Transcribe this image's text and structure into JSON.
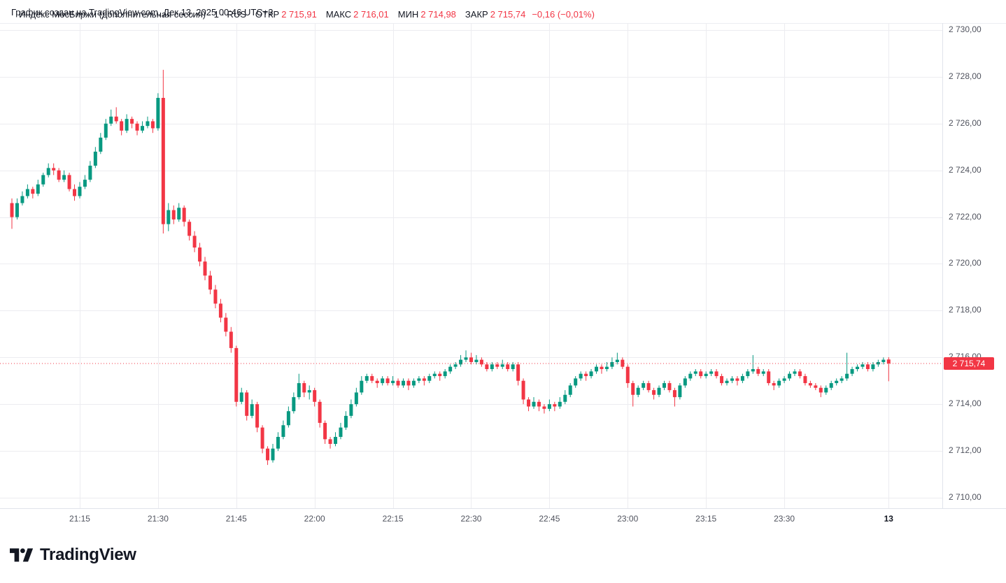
{
  "attribution": "График создан на TradingView.com, Дек 13, 2025 00:46 UTC+3",
  "legend": {
    "title": "Индекс МосБиржи (дополнительная сессия) · 1 · RUS",
    "open_label": "ОТКР",
    "open": "2 715,91",
    "high_label": "МАКС",
    "high": "2 716,01",
    "low_label": "МИН",
    "low": "2 714,98",
    "close_label": "ЗАКР",
    "close": "2 715,74",
    "change": "−0,16 (−0,01%)"
  },
  "price_axis": {
    "labels": [
      "2 730,00",
      "2 728,00",
      "2 726,00",
      "2 724,00",
      "2 722,00",
      "2 720,00",
      "2 718,00",
      "2 716,00",
      "2 714,00",
      "2 712,00",
      "2 710,00"
    ],
    "last_price_label": "2 715,74"
  },
  "time_axis": {
    "ticks": [
      {
        "label": "21:15",
        "time": "21:15"
      },
      {
        "label": "21:30",
        "time": "21:30"
      },
      {
        "label": "21:45",
        "time": "21:45"
      },
      {
        "label": "22:00",
        "time": "22:00"
      },
      {
        "label": "22:15",
        "time": "22:15"
      },
      {
        "label": "22:30",
        "time": "22:30"
      },
      {
        "label": "22:45",
        "time": "22:45"
      },
      {
        "label": "23:00",
        "time": "23:00"
      },
      {
        "label": "23:15",
        "time": "23:15"
      },
      {
        "label": "23:30",
        "time": "23:30"
      },
      {
        "label": "13",
        "time": "23:50",
        "emphasis": true
      }
    ]
  },
  "logo": {
    "text": "TradingView"
  },
  "colors": {
    "up": "#089981",
    "down": "#f23645",
    "grid": "#ececf0",
    "axis_line": "#e0e3eb",
    "text": "#131722",
    "axis_text": "#50535e",
    "badge_bg": "#f23645",
    "badge_text": "#ffffff",
    "background": "#ffffff"
  },
  "chart_data": {
    "type": "candlestick",
    "symbol": "Индекс МосБиржи (дополнительная сессия)",
    "interval_minutes": 1,
    "exchange": "RUS",
    "start_time": "21:02",
    "ylim": [
      2709.55,
      2730.3
    ],
    "y_ticks": [
      2730,
      2728,
      2726,
      2724,
      2722,
      2720,
      2718,
      2716,
      2714,
      2712,
      2710
    ],
    "last_close": 2715.74,
    "last_candle": {
      "open": 2715.91,
      "high": 2716.01,
      "low": 2714.98,
      "close": 2715.74,
      "change": -0.16,
      "change_pct": -0.01
    },
    "candle_format": [
      "time",
      "open",
      "high",
      "low",
      "close"
    ],
    "candles": [
      [
        "21:02",
        2722.6,
        2722.8,
        2721.5,
        2722.0
      ],
      [
        "21:03",
        2722.0,
        2722.8,
        2721.9,
        2722.6
      ],
      [
        "21:04",
        2722.6,
        2723.1,
        2722.5,
        2722.9
      ],
      [
        "21:05",
        2722.9,
        2723.4,
        2722.8,
        2723.2
      ],
      [
        "21:06",
        2723.2,
        2723.3,
        2722.8,
        2723.0
      ],
      [
        "21:07",
        2723.0,
        2723.6,
        2722.9,
        2723.4
      ],
      [
        "21:08",
        2723.4,
        2723.9,
        2723.3,
        2723.8
      ],
      [
        "21:09",
        2723.8,
        2724.3,
        2723.7,
        2724.1
      ],
      [
        "21:10",
        2724.1,
        2724.3,
        2723.8,
        2724.0
      ],
      [
        "21:11",
        2724.0,
        2724.1,
        2723.5,
        2723.6
      ],
      [
        "21:12",
        2723.6,
        2724.0,
        2723.5,
        2723.8
      ],
      [
        "21:13",
        2723.8,
        2723.9,
        2723.1,
        2723.2
      ],
      [
        "21:14",
        2723.2,
        2723.4,
        2722.7,
        2722.9
      ],
      [
        "21:15",
        2722.9,
        2723.5,
        2722.8,
        2723.3
      ],
      [
        "21:16",
        2723.3,
        2723.8,
        2723.2,
        2723.6
      ],
      [
        "21:17",
        2723.6,
        2724.4,
        2723.5,
        2724.2
      ],
      [
        "21:18",
        2724.2,
        2725.0,
        2724.1,
        2724.8
      ],
      [
        "21:19",
        2724.8,
        2725.6,
        2724.7,
        2725.4
      ],
      [
        "21:20",
        2725.4,
        2726.2,
        2725.3,
        2726.0
      ],
      [
        "21:21",
        2726.0,
        2726.6,
        2725.9,
        2726.3
      ],
      [
        "21:22",
        2726.3,
        2726.7,
        2726.0,
        2726.1
      ],
      [
        "21:23",
        2726.1,
        2726.2,
        2725.5,
        2725.7
      ],
      [
        "21:24",
        2725.7,
        2726.4,
        2725.6,
        2726.2
      ],
      [
        "21:25",
        2726.2,
        2726.3,
        2725.8,
        2726.0
      ],
      [
        "21:26",
        2726.0,
        2726.1,
        2725.5,
        2725.7
      ],
      [
        "21:27",
        2725.7,
        2726.1,
        2725.6,
        2725.9
      ],
      [
        "21:28",
        2725.9,
        2726.3,
        2725.8,
        2726.1
      ],
      [
        "21:29",
        2726.1,
        2726.2,
        2725.6,
        2725.8
      ],
      [
        "21:30",
        2725.8,
        2727.3,
        2725.7,
        2727.1
      ],
      [
        "21:31",
        2727.1,
        2728.3,
        2721.3,
        2721.7
      ],
      [
        "21:32",
        2721.7,
        2722.6,
        2721.4,
        2722.3
      ],
      [
        "21:33",
        2722.3,
        2722.5,
        2721.7,
        2721.9
      ],
      [
        "21:34",
        2721.9,
        2722.6,
        2721.8,
        2722.4
      ],
      [
        "21:35",
        2722.4,
        2722.5,
        2721.6,
        2721.8
      ],
      [
        "21:36",
        2721.8,
        2721.9,
        2721.0,
        2721.2
      ],
      [
        "21:37",
        2721.2,
        2721.4,
        2720.5,
        2720.7
      ],
      [
        "21:38",
        2720.7,
        2720.9,
        2719.9,
        2720.1
      ],
      [
        "21:39",
        2720.1,
        2720.3,
        2719.3,
        2719.5
      ],
      [
        "21:40",
        2719.5,
        2719.7,
        2718.7,
        2718.9
      ],
      [
        "21:41",
        2718.9,
        2719.1,
        2718.1,
        2718.3
      ],
      [
        "21:42",
        2718.3,
        2718.5,
        2717.5,
        2717.7
      ],
      [
        "21:43",
        2717.7,
        2717.9,
        2716.9,
        2717.1
      ],
      [
        "21:44",
        2717.1,
        2717.3,
        2716.2,
        2716.4
      ],
      [
        "21:45",
        2716.4,
        2716.5,
        2713.9,
        2714.1
      ],
      [
        "21:46",
        2714.1,
        2714.7,
        2714.0,
        2714.5
      ],
      [
        "21:47",
        2714.5,
        2714.6,
        2713.3,
        2713.5
      ],
      [
        "21:48",
        2713.5,
        2714.2,
        2713.4,
        2714.0
      ],
      [
        "21:49",
        2714.0,
        2714.1,
        2712.8,
        2713.0
      ],
      [
        "21:50",
        2713.0,
        2713.1,
        2711.9,
        2712.1
      ],
      [
        "21:51",
        2712.1,
        2712.2,
        2711.4,
        2711.6
      ],
      [
        "21:52",
        2711.6,
        2712.3,
        2711.5,
        2712.1
      ],
      [
        "21:53",
        2712.1,
        2712.8,
        2712.0,
        2712.6
      ],
      [
        "21:54",
        2712.6,
        2713.3,
        2712.5,
        2713.1
      ],
      [
        "21:55",
        2713.1,
        2713.9,
        2713.0,
        2713.7
      ],
      [
        "21:56",
        2713.7,
        2714.5,
        2713.6,
        2714.3
      ],
      [
        "21:57",
        2714.3,
        2715.3,
        2714.2,
        2714.9
      ],
      [
        "21:58",
        2714.9,
        2715.0,
        2714.3,
        2714.5
      ],
      [
        "21:59",
        2714.5,
        2714.8,
        2714.2,
        2714.6
      ],
      [
        "22:00",
        2714.6,
        2714.7,
        2713.9,
        2714.1
      ],
      [
        "22:01",
        2714.1,
        2714.2,
        2713.0,
        2713.2
      ],
      [
        "22:02",
        2713.2,
        2713.3,
        2712.3,
        2712.5
      ],
      [
        "22:03",
        2712.5,
        2712.6,
        2712.1,
        2712.3
      ],
      [
        "22:04",
        2712.3,
        2712.8,
        2712.2,
        2712.6
      ],
      [
        "22:05",
        2712.6,
        2713.2,
        2712.5,
        2713.0
      ],
      [
        "22:06",
        2713.0,
        2713.7,
        2712.9,
        2713.5
      ],
      [
        "22:07",
        2713.5,
        2714.2,
        2713.4,
        2714.0
      ],
      [
        "22:08",
        2714.0,
        2714.7,
        2713.9,
        2714.5
      ],
      [
        "22:09",
        2714.5,
        2715.2,
        2714.4,
        2715.0
      ],
      [
        "22:10",
        2715.0,
        2715.3,
        2714.9,
        2715.2
      ],
      [
        "22:11",
        2715.2,
        2715.3,
        2714.9,
        2715.0
      ],
      [
        "22:12",
        2715.0,
        2715.1,
        2714.7,
        2714.9
      ],
      [
        "22:13",
        2714.9,
        2715.2,
        2714.8,
        2715.1
      ],
      [
        "22:14",
        2715.1,
        2715.2,
        2714.8,
        2714.9
      ],
      [
        "22:15",
        2714.9,
        2715.2,
        2714.8,
        2715.0
      ],
      [
        "22:16",
        2715.0,
        2715.1,
        2714.7,
        2714.8
      ],
      [
        "22:17",
        2714.8,
        2715.1,
        2714.7,
        2715.0
      ],
      [
        "22:18",
        2715.0,
        2715.1,
        2714.6,
        2714.8
      ],
      [
        "22:19",
        2714.8,
        2715.1,
        2714.7,
        2715.0
      ],
      [
        "22:20",
        2715.0,
        2715.2,
        2714.9,
        2715.1
      ],
      [
        "22:21",
        2715.1,
        2715.2,
        2714.8,
        2715.0
      ],
      [
        "22:22",
        2715.0,
        2715.3,
        2714.9,
        2715.2
      ],
      [
        "22:23",
        2715.2,
        2715.4,
        2715.1,
        2715.3
      ],
      [
        "22:24",
        2715.3,
        2715.4,
        2715.0,
        2715.2
      ],
      [
        "22:25",
        2715.2,
        2715.5,
        2715.1,
        2715.4
      ],
      [
        "22:26",
        2715.4,
        2715.7,
        2715.3,
        2715.6
      ],
      [
        "22:27",
        2715.6,
        2715.8,
        2715.5,
        2715.7
      ],
      [
        "22:28",
        2715.7,
        2716.1,
        2715.6,
        2715.9
      ],
      [
        "22:29",
        2715.9,
        2716.3,
        2715.8,
        2716.0
      ],
      [
        "22:30",
        2716.0,
        2716.2,
        2715.7,
        2715.8
      ],
      [
        "22:31",
        2715.8,
        2716.1,
        2715.7,
        2715.9
      ],
      [
        "22:32",
        2715.9,
        2716.0,
        2715.6,
        2715.7
      ],
      [
        "22:33",
        2715.7,
        2715.8,
        2715.4,
        2715.5
      ],
      [
        "22:34",
        2715.5,
        2715.8,
        2715.4,
        2715.7
      ],
      [
        "22:35",
        2715.7,
        2715.8,
        2715.5,
        2715.6
      ],
      [
        "22:36",
        2715.6,
        2715.9,
        2715.5,
        2715.7
      ],
      [
        "22:37",
        2715.7,
        2715.8,
        2715.4,
        2715.5
      ],
      [
        "22:38",
        2715.5,
        2715.8,
        2715.4,
        2715.7
      ],
      [
        "22:39",
        2715.7,
        2715.8,
        2714.8,
        2715.0
      ],
      [
        "22:40",
        2715.0,
        2715.1,
        2714.0,
        2714.2
      ],
      [
        "22:41",
        2714.2,
        2714.3,
        2713.7,
        2713.9
      ],
      [
        "22:42",
        2713.9,
        2714.3,
        2713.8,
        2714.1
      ],
      [
        "22:43",
        2714.1,
        2714.2,
        2713.7,
        2713.9
      ],
      [
        "22:44",
        2713.9,
        2714.0,
        2713.6,
        2713.8
      ],
      [
        "22:45",
        2713.8,
        2714.2,
        2713.7,
        2714.0
      ],
      [
        "22:46",
        2714.0,
        2714.1,
        2713.7,
        2713.9
      ],
      [
        "22:47",
        2713.9,
        2714.3,
        2713.8,
        2714.1
      ],
      [
        "22:48",
        2714.1,
        2714.6,
        2714.0,
        2714.4
      ],
      [
        "22:49",
        2714.4,
        2714.9,
        2714.3,
        2714.8
      ],
      [
        "22:50",
        2714.8,
        2715.2,
        2714.7,
        2715.1
      ],
      [
        "22:51",
        2715.1,
        2715.4,
        2715.0,
        2715.3
      ],
      [
        "22:52",
        2715.3,
        2715.4,
        2715.0,
        2715.2
      ],
      [
        "22:53",
        2715.2,
        2715.5,
        2715.1,
        2715.4
      ],
      [
        "22:54",
        2715.4,
        2715.7,
        2715.3,
        2715.6
      ],
      [
        "22:55",
        2715.6,
        2715.7,
        2715.3,
        2715.5
      ],
      [
        "22:56",
        2715.5,
        2715.8,
        2715.4,
        2715.6
      ],
      [
        "22:57",
        2715.6,
        2716.0,
        2715.5,
        2715.8
      ],
      [
        "22:58",
        2715.8,
        2716.2,
        2715.7,
        2715.9
      ],
      [
        "22:59",
        2715.9,
        2716.0,
        2715.5,
        2715.6
      ],
      [
        "23:00",
        2715.6,
        2715.7,
        2714.7,
        2714.9
      ],
      [
        "23:01",
        2714.9,
        2715.0,
        2713.9,
        2714.4
      ],
      [
        "23:02",
        2714.4,
        2714.8,
        2714.3,
        2714.7
      ],
      [
        "23:03",
        2714.7,
        2715.0,
        2714.6,
        2714.9
      ],
      [
        "23:04",
        2714.9,
        2715.0,
        2714.5,
        2714.6
      ],
      [
        "23:05",
        2714.6,
        2714.7,
        2714.2,
        2714.4
      ],
      [
        "23:06",
        2714.4,
        2714.8,
        2714.3,
        2714.7
      ],
      [
        "23:07",
        2714.7,
        2715.0,
        2714.6,
        2714.9
      ],
      [
        "23:08",
        2714.9,
        2715.0,
        2714.5,
        2714.6
      ],
      [
        "23:09",
        2714.6,
        2714.7,
        2713.9,
        2714.3
      ],
      [
        "23:10",
        2714.3,
        2714.9,
        2714.2,
        2714.8
      ],
      [
        "23:11",
        2714.8,
        2715.2,
        2714.7,
        2715.1
      ],
      [
        "23:12",
        2715.1,
        2715.4,
        2715.0,
        2715.3
      ],
      [
        "23:13",
        2715.3,
        2715.5,
        2715.2,
        2715.4
      ],
      [
        "23:14",
        2715.4,
        2715.5,
        2715.1,
        2715.2
      ],
      [
        "23:15",
        2715.2,
        2715.4,
        2715.1,
        2715.3
      ],
      [
        "23:16",
        2715.3,
        2715.5,
        2715.2,
        2715.4
      ],
      [
        "23:17",
        2715.4,
        2715.5,
        2715.1,
        2715.2
      ],
      [
        "23:18",
        2715.2,
        2715.3,
        2714.8,
        2714.9
      ],
      [
        "23:19",
        2714.9,
        2715.1,
        2714.8,
        2715.0
      ],
      [
        "23:20",
        2715.0,
        2715.2,
        2714.9,
        2715.1
      ],
      [
        "23:21",
        2715.1,
        2715.2,
        2714.8,
        2715.0
      ],
      [
        "23:22",
        2715.0,
        2715.3,
        2714.9,
        2715.2
      ],
      [
        "23:23",
        2715.2,
        2715.5,
        2715.1,
        2715.4
      ],
      [
        "23:24",
        2715.4,
        2716.1,
        2715.3,
        2715.5
      ],
      [
        "23:25",
        2715.5,
        2715.6,
        2715.2,
        2715.3
      ],
      [
        "23:26",
        2715.3,
        2715.5,
        2715.2,
        2715.4
      ],
      [
        "23:27",
        2715.4,
        2715.5,
        2714.8,
        2714.9
      ],
      [
        "23:28",
        2714.9,
        2715.0,
        2714.6,
        2714.8
      ],
      [
        "23:29",
        2714.8,
        2715.1,
        2714.7,
        2715.0
      ],
      [
        "23:30",
        2715.0,
        2715.2,
        2714.9,
        2715.1
      ],
      [
        "23:31",
        2715.1,
        2715.4,
        2715.0,
        2715.3
      ],
      [
        "23:32",
        2715.3,
        2715.5,
        2715.2,
        2715.4
      ],
      [
        "23:33",
        2715.4,
        2715.5,
        2715.1,
        2715.2
      ],
      [
        "23:34",
        2715.2,
        2715.3,
        2714.8,
        2714.9
      ],
      [
        "23:35",
        2714.9,
        2715.0,
        2714.7,
        2714.8
      ],
      [
        "23:36",
        2714.8,
        2714.9,
        2714.6,
        2714.7
      ],
      [
        "23:37",
        2714.7,
        2714.8,
        2714.3,
        2714.5
      ],
      [
        "23:38",
        2714.5,
        2714.8,
        2714.4,
        2714.7
      ],
      [
        "23:39",
        2714.7,
        2715.0,
        2714.6,
        2714.9
      ],
      [
        "23:40",
        2714.9,
        2715.1,
        2714.8,
        2715.0
      ],
      [
        "23:41",
        2715.0,
        2715.2,
        2714.9,
        2715.1
      ],
      [
        "23:42",
        2715.1,
        2716.2,
        2715.0,
        2715.3
      ],
      [
        "23:43",
        2715.3,
        2715.6,
        2715.2,
        2715.5
      ],
      [
        "23:44",
        2715.5,
        2715.7,
        2715.4,
        2715.6
      ],
      [
        "23:45",
        2715.6,
        2715.8,
        2715.5,
        2715.7
      ],
      [
        "23:46",
        2715.7,
        2715.8,
        2715.4,
        2715.5
      ],
      [
        "23:47",
        2715.5,
        2715.8,
        2715.4,
        2715.7
      ],
      [
        "23:48",
        2715.7,
        2715.9,
        2715.6,
        2715.8
      ],
      [
        "23:49",
        2715.8,
        2716.0,
        2715.7,
        2715.9
      ],
      [
        "23:50",
        2715.91,
        2716.01,
        2714.98,
        2715.74
      ]
    ]
  }
}
